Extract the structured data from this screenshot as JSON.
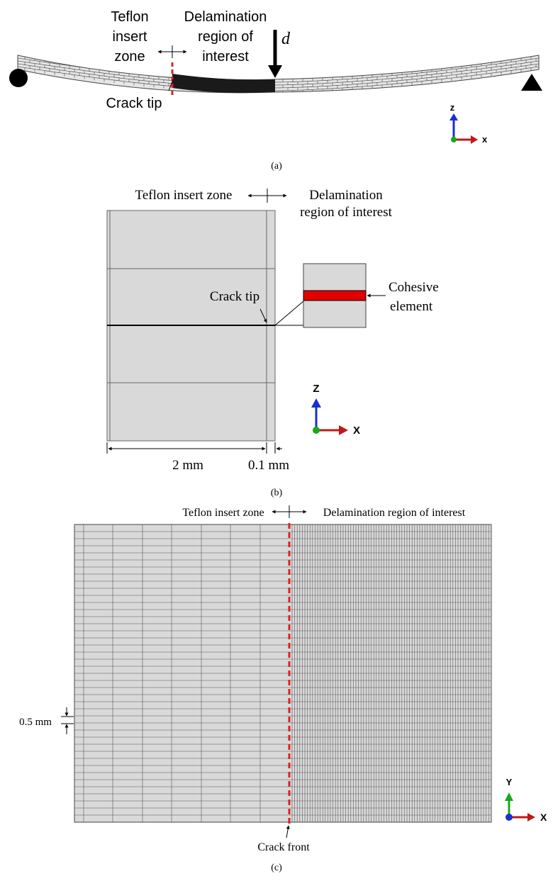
{
  "panel_a": {
    "label_teflon_line1": "Teflon",
    "label_teflon_line2": "insert",
    "label_teflon_line3": "zone",
    "label_delam_line1": "Delamination",
    "label_delam_line2": "region of",
    "label_delam_line3": "interest",
    "label_d": "d",
    "label_crack_tip": "Crack tip",
    "axis_z": "z",
    "axis_x": "x",
    "caption": "(a)"
  },
  "panel_b": {
    "label_teflon": "Teflon insert zone",
    "label_delam_line1": "Delamination",
    "label_delam_line2": "region of interest",
    "label_crack_tip": "Crack tip",
    "label_cohesive_line1": "Cohesive",
    "label_cohesive_line2": "element",
    "dim_2mm": "2 mm",
    "dim_01mm": "0.1 mm",
    "axis_z": "Z",
    "axis_x": "X",
    "caption": "(b)"
  },
  "panel_c": {
    "label_teflon": "Teflon insert zone",
    "label_delam": "Delamination region of interest",
    "dim_05mm": "0.5 mm",
    "label_crack_front": "Crack front",
    "axis_y": "Y",
    "axis_x": "X",
    "caption": "(c)"
  },
  "colors": {
    "crack_red": "#e02020",
    "mesh_fill": "#d9d9d9",
    "axis_blue": "#1a2fd0",
    "axis_red": "#c01818",
    "axis_green": "#18a818"
  }
}
